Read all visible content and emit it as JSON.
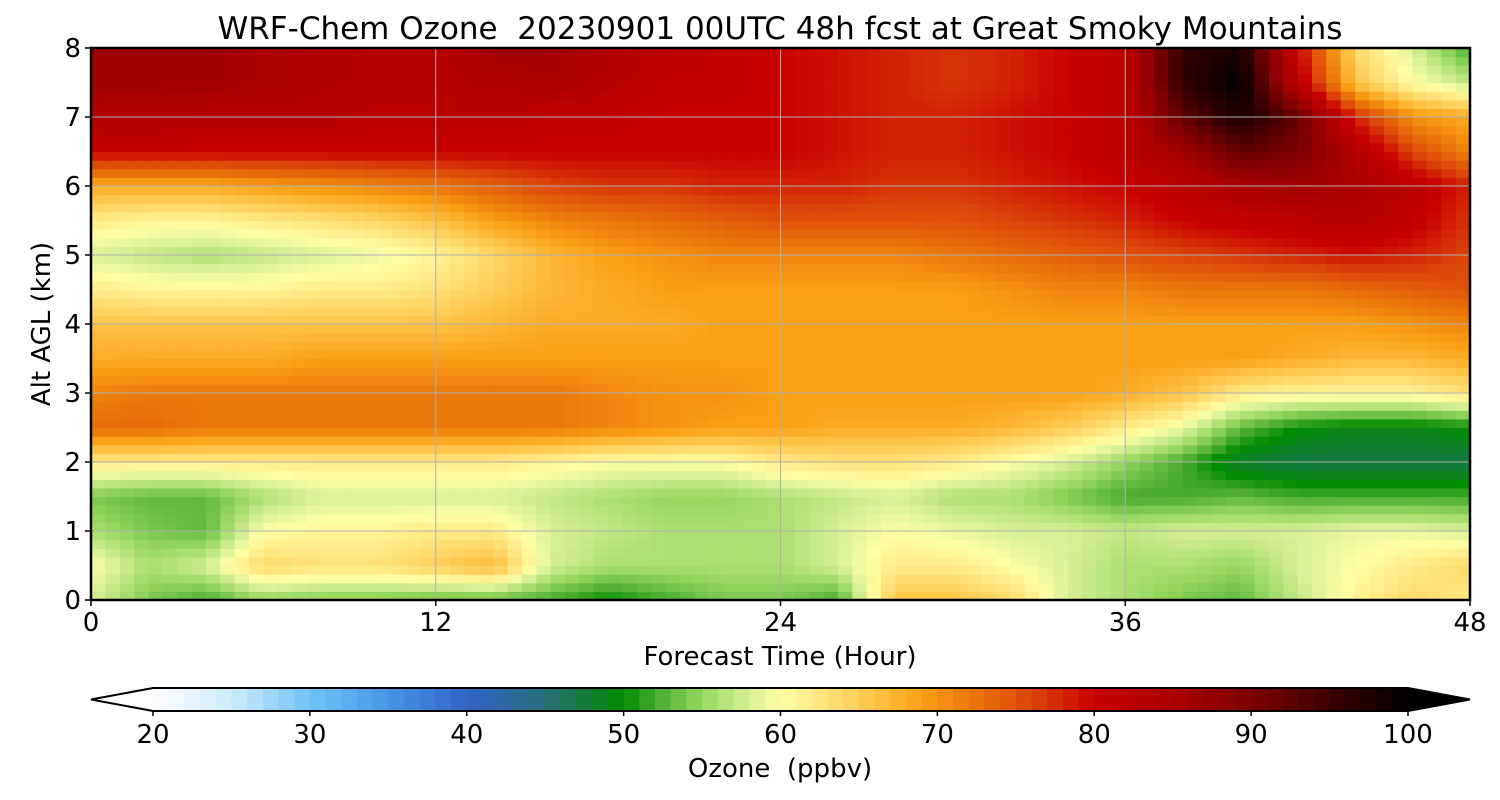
{
  "chart_data": {
    "type": "heatmap",
    "title": "WRF-Chem Ozone  20230901 00UTC 48h fcst at Great Smoky Mountains",
    "xlabel": "Forecast Time (Hour)",
    "ylabel": "Alt AGL (km)",
    "xlim": [
      0,
      48
    ],
    "ylim": [
      0,
      8
    ],
    "x_ticks": [
      0,
      12,
      24,
      36,
      48
    ],
    "y_ticks": [
      0,
      1,
      2,
      3,
      4,
      5,
      6,
      7,
      8
    ],
    "grid": true,
    "colorbar": {
      "label": "Ozone  (ppbv)",
      "min": 20,
      "max": 100,
      "ticks": [
        20,
        30,
        40,
        50,
        60,
        70,
        80,
        90,
        100
      ],
      "extend": "both",
      "orientation": "horizontal",
      "placement": "bottom"
    },
    "grid_x_hours": [
      0,
      2,
      4,
      6,
      8,
      10,
      12,
      14,
      16,
      18,
      20,
      22,
      24,
      26,
      28,
      30,
      32,
      34,
      36,
      38,
      40,
      42,
      44,
      46,
      48
    ],
    "grid_y_km": [
      0,
      0.5,
      1,
      1.5,
      2,
      2.5,
      3,
      3.5,
      4,
      4.5,
      5,
      5.5,
      6,
      6.5,
      7,
      7.5,
      8
    ],
    "ozone_ppbv_rows_bottom_to_top": [
      [
        58,
        54,
        52,
        55,
        54,
        54,
        53,
        53,
        52,
        50,
        52,
        54,
        54,
        52,
        66,
        66,
        64,
        58,
        56,
        54,
        53,
        57,
        61,
        64,
        62
      ],
      [
        60,
        56,
        58,
        64,
        63,
        63,
        65,
        67,
        58,
        56,
        56,
        56,
        56,
        58,
        62,
        62,
        60,
        58,
        56,
        56,
        55,
        58,
        60,
        62,
        64
      ],
      [
        56,
        54,
        53,
        60,
        61,
        61,
        62,
        62,
        58,
        57,
        56,
        56,
        56,
        58,
        60,
        59,
        58,
        58,
        57,
        58,
        58,
        58,
        59,
        59,
        58
      ],
      [
        54,
        53,
        53,
        56,
        58,
        58,
        58,
        58,
        57,
        56,
        55,
        55,
        56,
        57,
        58,
        56,
        56,
        54,
        52,
        52,
        53,
        52,
        52,
        52,
        52
      ],
      [
        62,
        62,
        62,
        62,
        62,
        62,
        62,
        62,
        61,
        60,
        60,
        60,
        62,
        63,
        63,
        62,
        60,
        58,
        55,
        52,
        48,
        47,
        47,
        47,
        47
      ],
      [
        73,
        73,
        72,
        72,
        72,
        72,
        72,
        72,
        72,
        71,
        70,
        69,
        69,
        68,
        68,
        68,
        67,
        65,
        62,
        59,
        53,
        50,
        49,
        49,
        50
      ],
      [
        71,
        72,
        72,
        72,
        72,
        72,
        72,
        72,
        72,
        71,
        70,
        70,
        69,
        69,
        69,
        69,
        69,
        69,
        68,
        66,
        62,
        61,
        61,
        61,
        63
      ],
      [
        68,
        68,
        68,
        68,
        69,
        69,
        69,
        69,
        69,
        69,
        69,
        69,
        69,
        69,
        69,
        69,
        69,
        69,
        69,
        69,
        69,
        68,
        67,
        67,
        68
      ],
      [
        66,
        66,
        66,
        66,
        66,
        66,
        66,
        67,
        68,
        68,
        68,
        69,
        69,
        69,
        69,
        69,
        69,
        69,
        69,
        69,
        69,
        69,
        69,
        70,
        71
      ],
      [
        62,
        61,
        61,
        61,
        62,
        62,
        63,
        65,
        67,
        68,
        69,
        69,
        69,
        69,
        69,
        69,
        70,
        71,
        71,
        72,
        72,
        72,
        73,
        74,
        75
      ],
      [
        58,
        57,
        56,
        57,
        58,
        59,
        61,
        64,
        67,
        69,
        70,
        71,
        71,
        71,
        71,
        72,
        73,
        74,
        75,
        76,
        77,
        78,
        79,
        78,
        76
      ],
      [
        62,
        61,
        61,
        62,
        63,
        64,
        66,
        69,
        71,
        72,
        73,
        74,
        75,
        75,
        75,
        75,
        76,
        77,
        78,
        80,
        81,
        82,
        83,
        81,
        77
      ],
      [
        68,
        68,
        68,
        69,
        70,
        71,
        72,
        74,
        76,
        77,
        77,
        78,
        78,
        78,
        77,
        77,
        78,
        79,
        80,
        82,
        85,
        86,
        85,
        82,
        78
      ],
      [
        80,
        80,
        80,
        80,
        80,
        80,
        80,
        80,
        80,
        80,
        80,
        80,
        80,
        79,
        78,
        78,
        79,
        80,
        82,
        86,
        92,
        90,
        84,
        76,
        71
      ],
      [
        84,
        84,
        83,
        83,
        83,
        82,
        82,
        82,
        81,
        81,
        80,
        80,
        80,
        79,
        78,
        78,
        79,
        80,
        82,
        92,
        98,
        92,
        78,
        70,
        68
      ],
      [
        86,
        86,
        86,
        85,
        84,
        83,
        83,
        84,
        85,
        83,
        81,
        81,
        80,
        79,
        78,
        77,
        78,
        80,
        82,
        96,
        100,
        82,
        66,
        60,
        57
      ],
      [
        86,
        86,
        86,
        85,
        84,
        83,
        83,
        86,
        86,
        84,
        82,
        81,
        80,
        79,
        78,
        77,
        78,
        80,
        82,
        96,
        98,
        80,
        64,
        58,
        52
      ]
    ]
  }
}
